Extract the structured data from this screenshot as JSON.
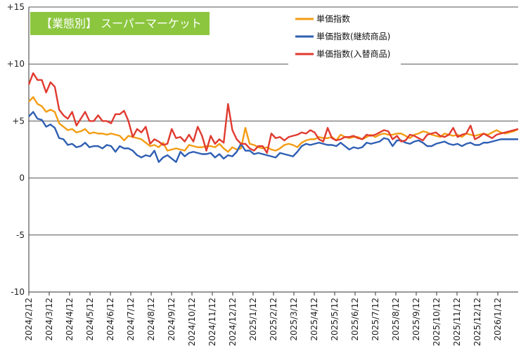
{
  "chart_data": {
    "type": "line",
    "title": "【業態別】 スーパーマーケット",
    "badge_color": "#8cc63f",
    "xlabel": "",
    "ylabel": "",
    "ylim": [
      -10,
      15
    ],
    "y_ticks": [
      {
        "value": 15,
        "label": "+15"
      },
      {
        "value": 10,
        "label": "+10"
      },
      {
        "value": 5,
        "label": "+5"
      },
      {
        "value": 0,
        "label": "0"
      },
      {
        "value": -5,
        "label": "-5"
      },
      {
        "value": -10,
        "label": "-10"
      }
    ],
    "x_tick_labels": [
      "2024/2/12",
      "2024/3/12",
      "2024/4/12",
      "2024/5/12",
      "2024/6/12",
      "2024/7/12",
      "2024/8/12",
      "2024/9/12",
      "2024/10/12",
      "2024/11/12",
      "2024/12/12",
      "2025/1/12",
      "2025/2/12",
      "2025/3/12",
      "2025/4/12",
      "2025/5/12",
      "2025/6/12",
      "2025/7/12",
      "2025/8/12",
      "2025/9/12",
      "2025/10/12",
      "2025/11/12",
      "2025/12/12",
      "2026/1/12"
    ],
    "grid": "horizontal",
    "legend_position": "top-right",
    "series": [
      {
        "name": "単価指数",
        "color": "#f39c12",
        "values": [
          6.7,
          7.1,
          6.5,
          6.3,
          5.8,
          6.0,
          5.8,
          4.8,
          4.5,
          4.2,
          4.3,
          4.0,
          4.1,
          4.3,
          3.9,
          4.0,
          3.9,
          3.9,
          3.8,
          3.9,
          3.8,
          3.7,
          3.3,
          3.7,
          3.6,
          3.5,
          3.4,
          3.1,
          2.8,
          2.9,
          2.7,
          3.1,
          2.4,
          2.5,
          2.6,
          2.5,
          2.4,
          2.9,
          2.8,
          2.7,
          2.7,
          2.8,
          2.8,
          2.7,
          3.0,
          2.6,
          2.3,
          2.7,
          2.5,
          2.6,
          4.4,
          3.0,
          2.9,
          2.7,
          2.6,
          2.7,
          2.5,
          2.4,
          2.6,
          2.9,
          3.0,
          2.9,
          2.7,
          3.1,
          3.3,
          3.4,
          3.4,
          3.6,
          3.5,
          3.5,
          3.6,
          3.3,
          3.8,
          3.6,
          3.5,
          3.6,
          3.6,
          3.4,
          3.6,
          3.8,
          3.6,
          3.8,
          3.9,
          3.8,
          3.8,
          3.9,
          3.9,
          3.7,
          3.5,
          3.8,
          3.9,
          4.1,
          4.0,
          3.8,
          3.7,
          3.6,
          3.9,
          3.8,
          3.7,
          3.8,
          3.6,
          3.9,
          3.8,
          3.7,
          3.8,
          3.9,
          3.8,
          4.0,
          4.2,
          4.0,
          3.9,
          4.0,
          4.1,
          4.3
        ],
        "note": ""
      },
      {
        "name": "単価指数(継続商品)",
        "color": "#2f5fb3",
        "values": [
          5.4,
          5.8,
          5.2,
          5.1,
          4.5,
          4.7,
          4.4,
          3.5,
          3.4,
          2.9,
          3.0,
          2.7,
          2.8,
          3.1,
          2.7,
          2.8,
          2.8,
          2.6,
          2.9,
          2.8,
          2.3,
          2.8,
          2.6,
          2.6,
          2.4,
          2.0,
          1.8,
          2.0,
          1.9,
          2.4,
          1.4,
          1.8,
          2.0,
          1.7,
          1.4,
          2.3,
          1.9,
          2.2,
          2.3,
          2.2,
          2.1,
          2.1,
          2.2,
          1.8,
          2.1,
          1.7,
          2.0,
          1.9,
          2.3,
          3.0,
          2.4,
          2.4,
          2.1,
          2.2,
          2.1,
          2.0,
          1.9,
          1.8,
          2.2,
          2.1,
          2.0,
          1.9,
          2.3,
          2.8,
          3.0,
          2.9,
          3.0,
          3.1,
          3.0,
          2.9,
          2.9,
          2.8,
          3.1,
          2.8,
          2.5,
          2.7,
          2.6,
          2.7,
          3.1,
          3.0,
          3.1,
          3.2,
          3.5,
          3.4,
          2.8,
          3.3,
          3.3,
          3.1,
          3.0,
          3.2,
          3.3,
          3.1,
          2.8,
          2.8,
          3.0,
          3.1,
          3.2,
          3.0,
          2.9,
          3.0,
          2.8,
          3.0,
          3.1,
          2.9,
          2.9,
          3.1,
          3.1,
          3.2,
          3.3,
          3.4,
          3.4,
          3.4,
          3.4,
          3.4
        ],
        "note": ""
      },
      {
        "name": "単価指数(入替商品)",
        "color": "#e03a2f",
        "values": [
          8.2,
          9.2,
          8.6,
          8.6,
          7.5,
          8.4,
          8.0,
          6.0,
          5.5,
          5.2,
          5.8,
          4.6,
          5.2,
          5.8,
          5.0,
          5.0,
          5.5,
          5.0,
          5.0,
          4.8,
          5.6,
          5.6,
          5.9,
          5.0,
          3.6,
          4.3,
          4.0,
          4.5,
          3.0,
          3.4,
          3.2,
          2.9,
          3.0,
          4.3,
          3.5,
          3.6,
          3.2,
          3.8,
          3.2,
          4.5,
          3.7,
          2.4,
          3.7,
          3.0,
          3.4,
          3.1,
          6.5,
          4.2,
          3.4,
          3.0,
          3.0,
          2.6,
          2.4,
          2.8,
          2.8,
          2.2,
          3.9,
          3.5,
          3.6,
          3.3,
          3.6,
          3.7,
          3.8,
          4.0,
          3.9,
          4.2,
          4.0,
          3.4,
          3.2,
          4.4,
          3.5,
          3.3,
          3.4,
          3.6,
          3.6,
          3.7,
          3.5,
          3.4,
          3.8,
          3.7,
          3.8,
          4.0,
          4.2,
          4.1,
          3.4,
          3.7,
          3.2,
          3.3,
          3.8,
          3.7,
          3.5,
          3.3,
          3.8,
          3.9,
          4.0,
          3.7,
          3.6,
          3.8,
          4.4,
          3.6,
          3.8,
          3.9,
          4.6,
          3.4,
          3.6,
          3.9,
          3.7,
          3.5,
          3.8,
          3.9,
          4.0,
          4.1,
          4.2,
          4.3
        ],
        "note": ""
      }
    ]
  }
}
